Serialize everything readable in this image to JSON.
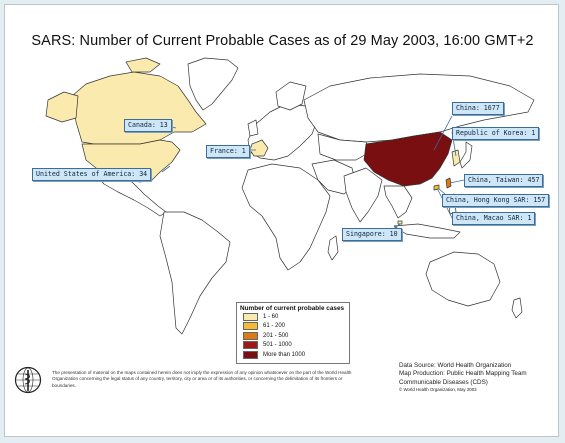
{
  "title": "SARS: Number of Current Probable Cases as of 29 May 2003, 16:00 GMT+2",
  "colors": {
    "range_1_60": "#fbeaad",
    "range_61_200": "#f6b932",
    "range_201_500": "#dc7a14",
    "range_501_1000": "#9e1a1a",
    "range_more_1000": "#7a0f12",
    "water": "#ffffff",
    "no_cases_land": "#ffffff",
    "callout_fill": "#cfe6f7"
  },
  "callouts": [
    {
      "id": "canada",
      "label": "Canada: 13"
    },
    {
      "id": "usa",
      "label": "United States of America: 34"
    },
    {
      "id": "france",
      "label": "France: 1"
    },
    {
      "id": "china",
      "label": "China: 1677"
    },
    {
      "id": "korea",
      "label": "Republic of Korea: 1"
    },
    {
      "id": "taiwan",
      "label": "China, Taiwan: 457"
    },
    {
      "id": "hongkong",
      "label": "China, Hong Kong SAR: 157"
    },
    {
      "id": "macao",
      "label": "China, Macao SAR: 1"
    },
    {
      "id": "singapore",
      "label": "Singapore: 10"
    }
  ],
  "legend": {
    "title": "Number of current probable cases",
    "items": [
      {
        "label": "1 - 60"
      },
      {
        "label": "61 - 200"
      },
      {
        "label": "201 - 500"
      },
      {
        "label": "501 - 1000"
      },
      {
        "label": "More than 1000"
      }
    ]
  },
  "disclaimer": "The presentation of material on the maps contained herein does not imply the expression of any opinion whatsoever on the part of the World Health Organization concerning the legal status of any country, territory, city or area or of its authorities, or concerning the delimitation of its frontiers or boundaries.",
  "source": {
    "line1": "Data Source: World Health Organization",
    "line2": "Map Production: Public Health Mapping Team",
    "line3": "Communicable Diseases (CDS)",
    "copyright": "© World Health Organization, May 2003"
  },
  "logo": {
    "icon": "who-emblem-icon"
  }
}
